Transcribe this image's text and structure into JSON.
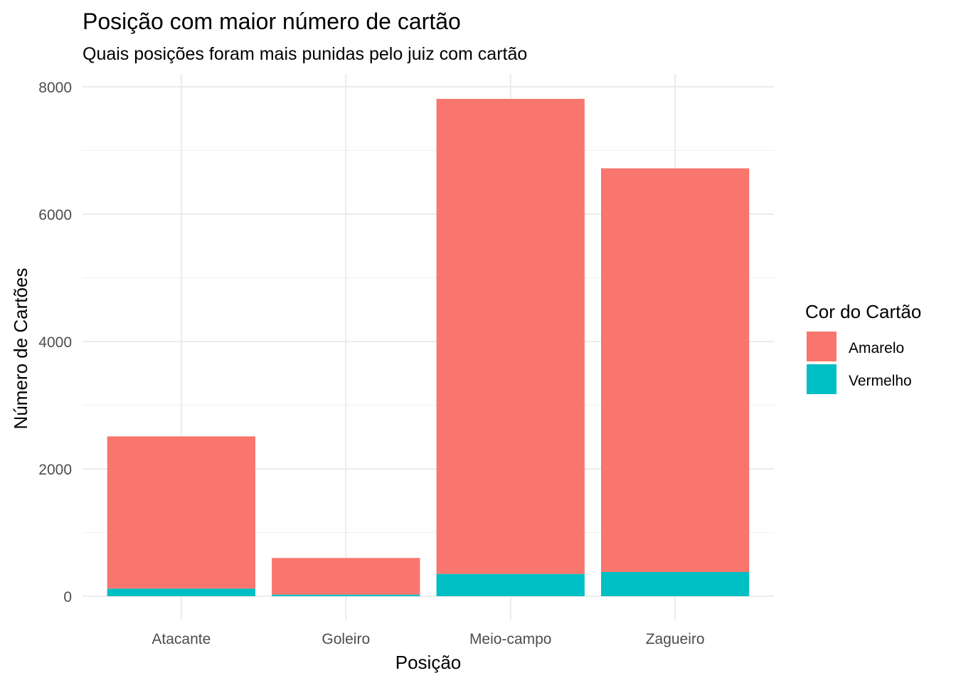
{
  "colors": {
    "amarelo": "#F8766D",
    "vermelho": "#00BFC4"
  },
  "chart_data": {
    "type": "bar",
    "stacked": true,
    "title": "Posição com maior número de cartão",
    "subtitle": "Quais posições foram mais punidas pelo juiz com cartão",
    "xlabel": "Posição",
    "ylabel": "Número de Cartões",
    "categories": [
      "Atacante",
      "Goleiro",
      "Meio-campo",
      "Zagueiro"
    ],
    "series": [
      {
        "name": "Vermelho",
        "values": [
          120,
          25,
          350,
          380
        ]
      },
      {
        "name": "Amarelo",
        "values": [
          2390,
          575,
          7460,
          6340
        ]
      }
    ],
    "ylim": [
      -250,
      8200
    ],
    "yticks": [
      0,
      2000,
      4000,
      6000,
      8000
    ],
    "grid": true,
    "legend": {
      "title": "Cor do Cartão",
      "position": "right",
      "entries": [
        "Amarelo",
        "Vermelho"
      ]
    }
  }
}
